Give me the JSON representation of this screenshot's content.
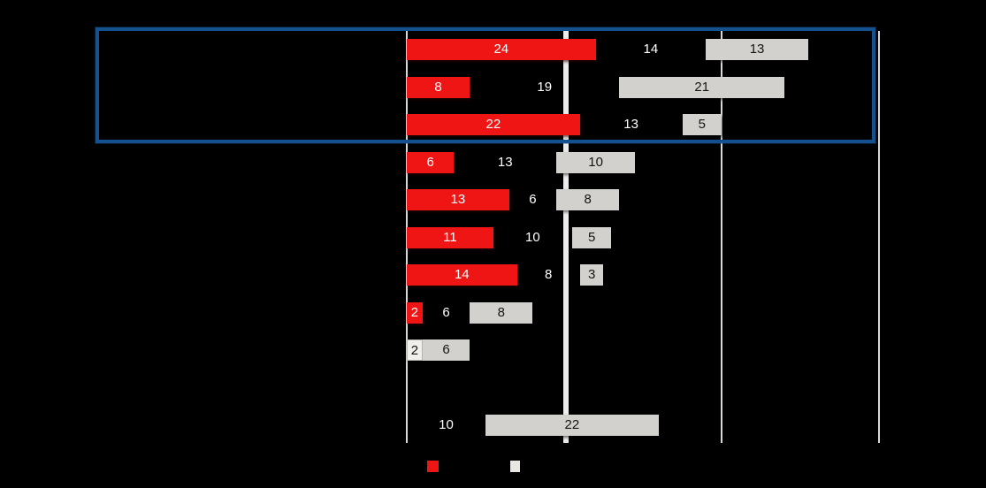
{
  "chart_data": {
    "type": "bar",
    "orientation": "horizontal",
    "stacked": true,
    "series_names": [
      "red",
      "middle",
      "gray"
    ],
    "rows": [
      {
        "red": 24,
        "middle": 14,
        "gray": 13,
        "highlighted": true
      },
      {
        "red": 8,
        "middle": 19,
        "gray": 21,
        "highlighted": true
      },
      {
        "red": 22,
        "middle": 13,
        "gray": 5,
        "highlighted": true
      },
      {
        "red": 6,
        "middle": 13,
        "gray": 10
      },
      {
        "red": 13,
        "middle": 6,
        "gray": 8
      },
      {
        "red": 11,
        "middle": 10,
        "gray": 5
      },
      {
        "red": 14,
        "middle": 8,
        "gray": 3
      },
      {
        "red": 2,
        "middle": 6,
        "gray": 8
      },
      {
        "red": 2,
        "middle": 0,
        "gray": 6,
        "red_variant": "light"
      },
      {
        "spacer": true
      },
      {
        "red": 0,
        "middle": 10,
        "gray": 22
      }
    ],
    "xlim": [
      0,
      60
    ],
    "gridline_values": [
      0,
      20,
      40,
      60
    ],
    "colors": {
      "red": "#f01515",
      "middle": "transparent",
      "gray": "#d3d1ce",
      "light": "#f1efec",
      "highlight_border": "#15508f",
      "gridline": "#ececec"
    },
    "grid": true,
    "legend_position": "bottom"
  },
  "legend": {
    "swatches": [
      {
        "name": "red-swatch",
        "color": "#f01515"
      },
      {
        "name": "gray-swatch",
        "color": "#e9e7e4"
      }
    ]
  }
}
